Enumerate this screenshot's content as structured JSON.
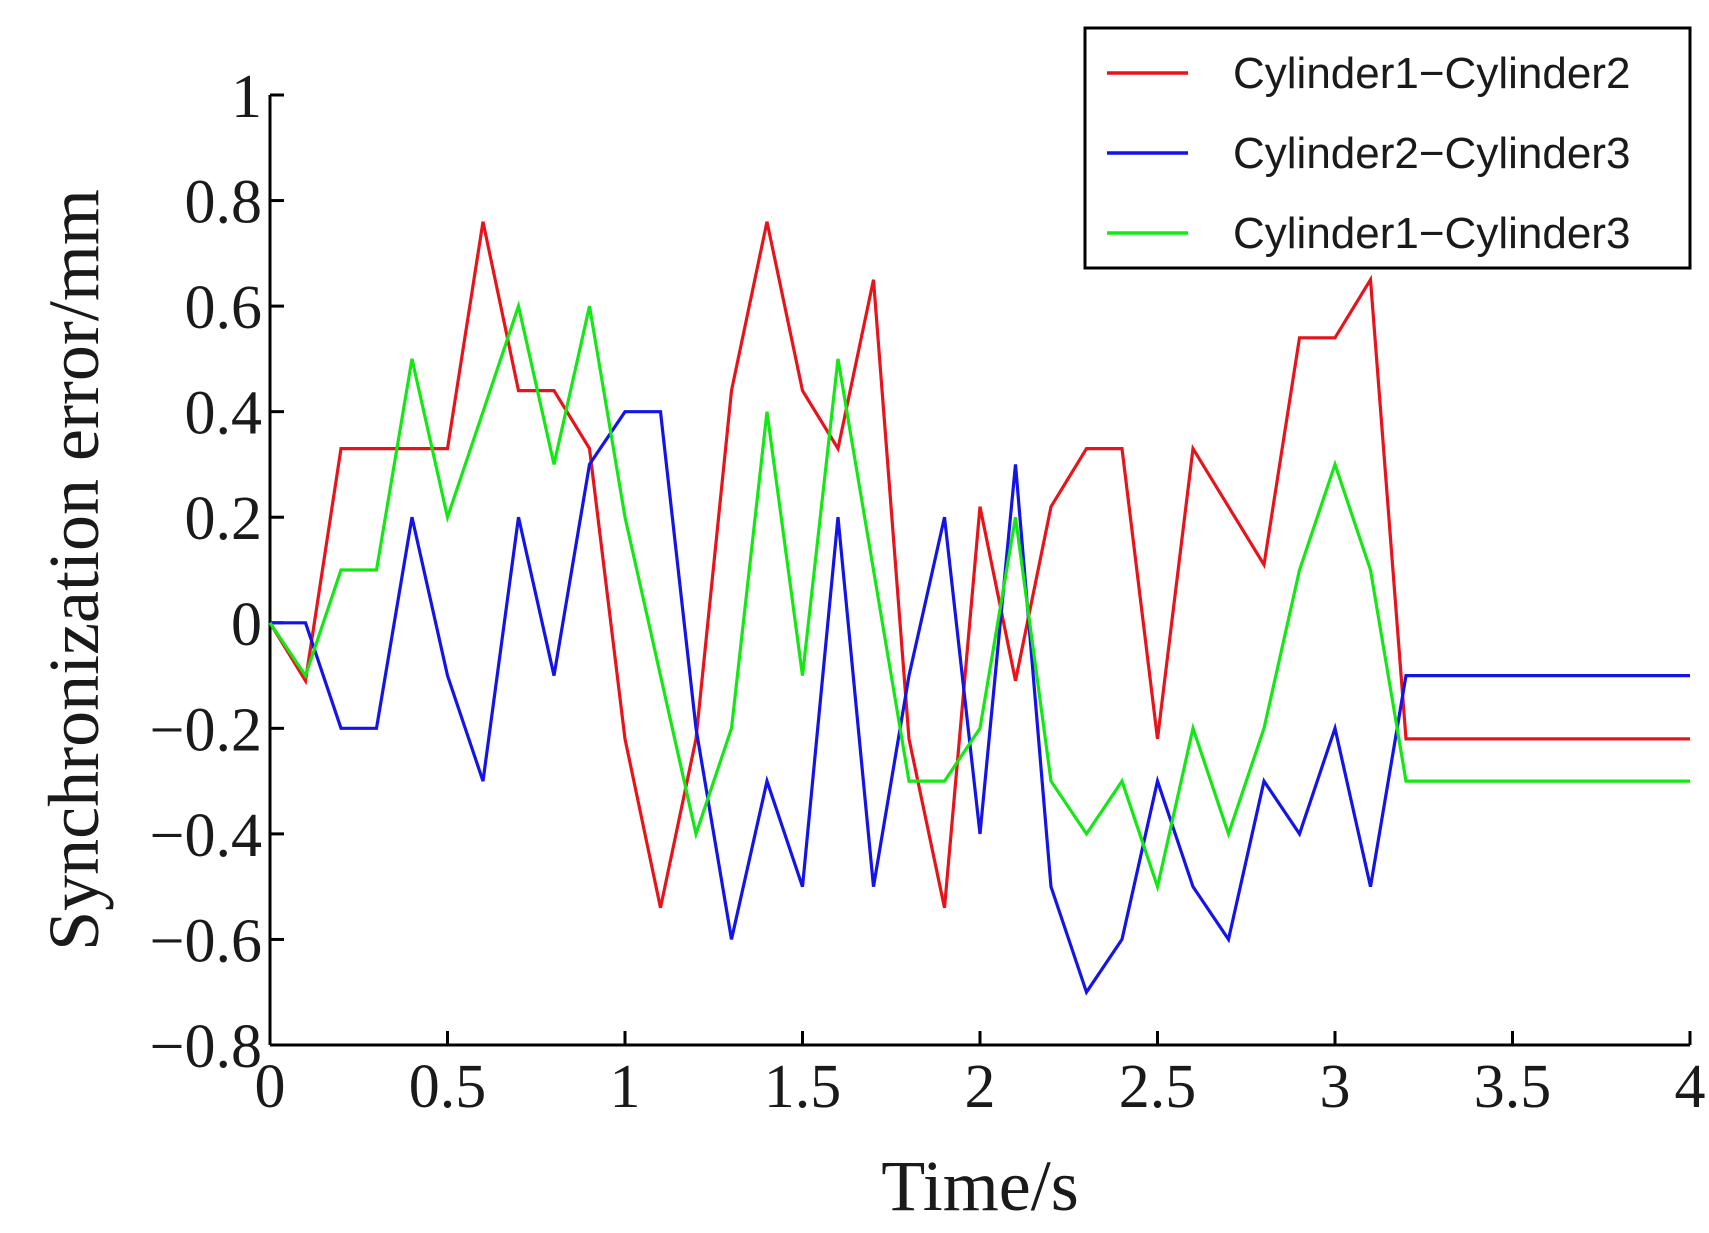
{
  "chart_data": {
    "type": "line",
    "title": "",
    "xlabel": "Time/s",
    "ylabel": "Synchronization error/mm",
    "xlim": [
      0,
      4
    ],
    "ylim": [
      -0.8,
      1
    ],
    "xticks": [
      0,
      0.5,
      1,
      1.5,
      2,
      2.5,
      3,
      3.5,
      4
    ],
    "xtick_labels": [
      "0",
      "0.5",
      "1",
      "1.5",
      "2",
      "2.5",
      "3",
      "3.5",
      "4"
    ],
    "yticks": [
      -0.8,
      -0.6,
      -0.4,
      -0.2,
      0,
      0.2,
      0.4,
      0.6,
      0.8,
      1
    ],
    "ytick_labels": [
      "−0.8",
      "−0.6",
      "−0.4",
      "−0.2",
      "0",
      "0.2",
      "0.4",
      "0.6",
      "0.8",
      "1"
    ],
    "grid": false,
    "legend_position": "top-right",
    "series": [
      {
        "name": "Cylinder1−Cylinder2",
        "color": "#e8141c",
        "x": [
          0,
          0.1,
          0.2,
          0.3,
          0.4,
          0.5,
          0.6,
          0.7,
          0.8,
          0.9,
          1.0,
          1.1,
          1.2,
          1.3,
          1.4,
          1.5,
          1.6,
          1.7,
          1.8,
          1.9,
          2.0,
          2.1,
          2.2,
          2.3,
          2.4,
          2.5,
          2.6,
          2.7,
          2.8,
          2.9,
          3.0,
          3.1,
          3.2,
          3.3,
          3.4,
          3.5,
          3.6,
          3.7,
          3.8,
          3.9,
          4.0
        ],
        "values": [
          0,
          -0.11,
          0.33,
          0.33,
          0.33,
          0.33,
          0.76,
          0.44,
          0.44,
          0.33,
          -0.22,
          -0.54,
          -0.22,
          0.44,
          0.76,
          0.44,
          0.33,
          0.65,
          -0.22,
          -0.54,
          0.22,
          -0.11,
          0.22,
          0.33,
          0.33,
          -0.22,
          0.33,
          0.22,
          0.11,
          0.54,
          0.54,
          0.65,
          -0.22,
          -0.22,
          -0.22,
          -0.22,
          -0.22,
          -0.22,
          -0.22,
          -0.22,
          -0.22
        ]
      },
      {
        "name": "Cylinder2−Cylinder3",
        "color": "#1414e8",
        "x": [
          0,
          0.1,
          0.2,
          0.3,
          0.4,
          0.5,
          0.6,
          0.7,
          0.8,
          0.9,
          1.0,
          1.1,
          1.2,
          1.3,
          1.4,
          1.5,
          1.6,
          1.7,
          1.8,
          1.9,
          2.0,
          2.1,
          2.2,
          2.3,
          2.4,
          2.5,
          2.6,
          2.7,
          2.8,
          2.9,
          3.0,
          3.1,
          3.2,
          3.3,
          3.4,
          3.5,
          3.6,
          3.7,
          3.8,
          3.9,
          4.0
        ],
        "values": [
          0,
          0,
          -0.2,
          -0.2,
          0.2,
          -0.1,
          -0.3,
          0.2,
          -0.1,
          0.3,
          0.4,
          0.4,
          -0.2,
          -0.6,
          -0.3,
          -0.5,
          0.2,
          -0.5,
          -0.1,
          0.2,
          -0.4,
          0.3,
          -0.5,
          -0.7,
          -0.6,
          -0.3,
          -0.5,
          -0.6,
          -0.3,
          -0.4,
          -0.2,
          -0.5,
          -0.1,
          -0.1,
          -0.1,
          -0.1,
          -0.1,
          -0.1,
          -0.1,
          -0.1,
          -0.1
        ]
      },
      {
        "name": "Cylinder1−Cylinder3",
        "color": "#14e814",
        "x": [
          0,
          0.1,
          0.2,
          0.3,
          0.4,
          0.5,
          0.6,
          0.7,
          0.8,
          0.9,
          1.0,
          1.1,
          1.2,
          1.3,
          1.4,
          1.5,
          1.6,
          1.7,
          1.8,
          1.9,
          2.0,
          2.1,
          2.2,
          2.3,
          2.4,
          2.5,
          2.6,
          2.7,
          2.8,
          2.9,
          3.0,
          3.1,
          3.2,
          3.3,
          3.4,
          3.5,
          3.6,
          3.7,
          3.8,
          3.9,
          4.0
        ],
        "values": [
          0,
          -0.1,
          0.1,
          0.1,
          0.5,
          0.2,
          0.4,
          0.6,
          0.3,
          0.6,
          0.2,
          -0.1,
          -0.4,
          -0.2,
          0.4,
          -0.1,
          0.5,
          0.1,
          -0.3,
          -0.3,
          -0.2,
          0.2,
          -0.3,
          -0.4,
          -0.3,
          -0.5,
          -0.2,
          -0.4,
          -0.2,
          0.1,
          0.3,
          0.1,
          -0.3,
          -0.3,
          -0.3,
          -0.3,
          -0.3,
          -0.3,
          -0.3,
          -0.3,
          -0.3
        ]
      }
    ]
  }
}
